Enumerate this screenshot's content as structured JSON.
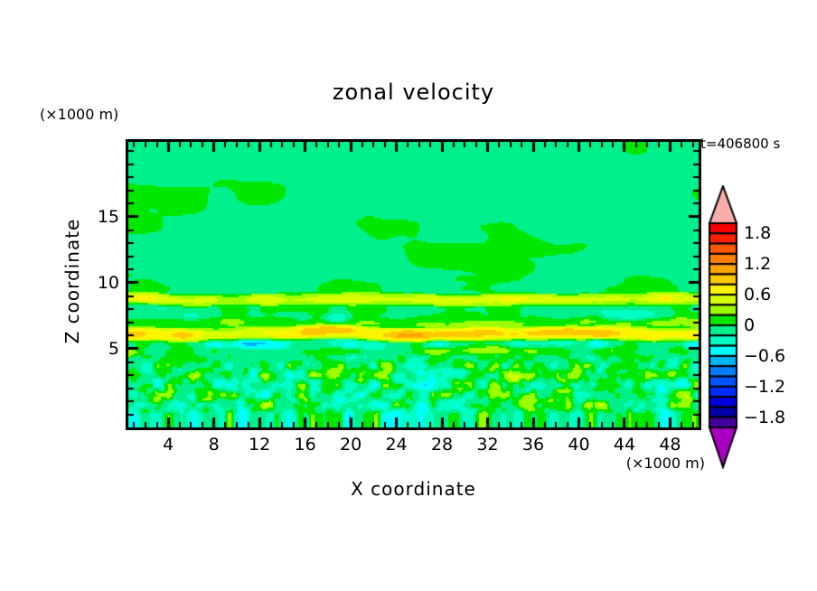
{
  "chart": {
    "title": "zonal velocity",
    "time_label": "t=406800 s",
    "x_axis": {
      "title": "X coordinate",
      "unit": "(×1000 m)",
      "tick_labels": [
        4,
        8,
        12,
        16,
        20,
        24,
        28,
        32,
        36,
        40,
        44,
        48
      ],
      "minor_tick_values_from": 1,
      "minor_tick_values_to": 50
    },
    "z_axis": {
      "title": "Z coordinate",
      "unit": "(×1000 m)",
      "tick_labels": [
        5,
        10,
        15
      ],
      "minor_tick_values_from": 0,
      "minor_tick_values_to": 20
    },
    "colorbar": {
      "tick_labels": [
        "1.8",
        "1.2",
        "0.6",
        "0",
        "−0.6",
        "−1.2",
        "−1.8"
      ]
    }
  },
  "chart_data": {
    "type": "heatmap",
    "subtype": "filled-contour",
    "title": "zonal velocity",
    "time_label": "t=406800 s",
    "x_range_km": [
      0.5,
      50.5
    ],
    "z_range_km": [
      0,
      20
    ],
    "levels": {
      "min": -2.0,
      "max": 2.0,
      "step": 0.2
    },
    "colorbar_label_values": [
      1.8,
      1.2,
      0.6,
      0,
      -0.6,
      -1.2,
      -1.8
    ],
    "palette_top_to_bottom": [
      "#f80000",
      "#ff2000",
      "#ff5800",
      "#ff8000",
      "#ffa400",
      "#ffc800",
      "#fff400",
      "#d8ff00",
      "#9cff00",
      "#00e800",
      "#00f08c",
      "#00ffc4",
      "#00ffff",
      "#00b4ff",
      "#0080ff",
      "#0054ff",
      "#002cff",
      "#0000e0",
      "#0000a8",
      "#4400a0"
    ],
    "over_color": "#f8acac",
    "under_color": "#a800c0",
    "features": [
      "upper region z=10..20: weak velocities, spring-green background (-0.2..0) with large green patches (0..0.2)",
      "thin positive jet band near z=8.8 spanning full width, u up to +0.8 (yellow)",
      "patchy negative streaks near z=7.4 (turquoise/cyan)",
      "strong positive shear band near z=6.1, u up to +1.5, orange cores mid/right (x=18..42)",
      "patchy negative band near z=5.3 with blue spots down to -1.4",
      "small-scale turbulent speckle below z=4.5, u roughly -0.7..+0.7"
    ],
    "render_model": {
      "bias": -0.05,
      "upper": {
        "amp": 0.16,
        "sx": 6.5,
        "sz": 2.4
      },
      "mid": {
        "amp": 0.15,
        "sx": 2.4,
        "sz": 0.8,
        "ztop": 10.8,
        "fade": 1.6
      },
      "low": {
        "amp": 0.55,
        "sx": 1.05,
        "sz": 0.75,
        "ztop": 4.7,
        "fade": 0.9
      },
      "bands": [
        {
          "z": 8.78,
          "hw": 0.55,
          "amp": 0.78,
          "msx": 4.5,
          "mmin": 0.35,
          "wob": 0.25
        },
        {
          "z": 7.45,
          "hw": 0.5,
          "amp": -0.55,
          "msx": 3.2,
          "gate": 0.52,
          "wob": 0.2
        },
        {
          "z": 6.9,
          "hw": 0.55,
          "amp": 0.28,
          "msx": 6.0,
          "mmin": 0.55,
          "wob": 0.15
        },
        {
          "z": 6.12,
          "hw": 0.6,
          "amp": 1.3,
          "msx": 4.2,
          "mmin": 0.25,
          "wob": 0.2
        },
        {
          "z": 5.35,
          "hw": 0.45,
          "amp": -1.05,
          "msx": 2.8,
          "gate": 0.5,
          "wob": 0.15
        },
        {
          "z": 4.78,
          "hw": 0.4,
          "amp": 0.55,
          "msx": 3.5,
          "gate": 0.45,
          "wob": 0.2
        }
      ]
    }
  }
}
